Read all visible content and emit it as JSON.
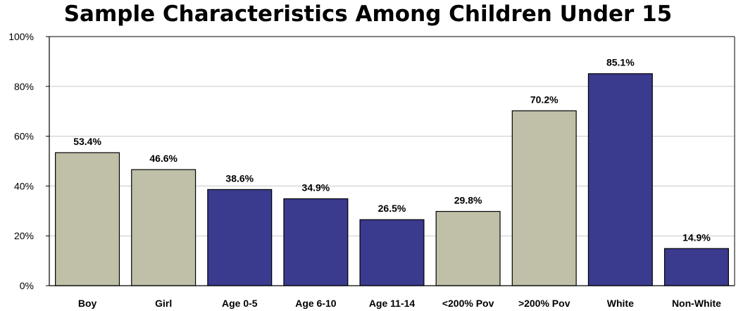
{
  "chart_data": {
    "type": "bar",
    "title": "Sample Characteristics Among Children Under 15",
    "xlabel": "",
    "ylabel": "",
    "ylim": [
      0,
      100
    ],
    "yticks": [
      "0%",
      "20%",
      "40%",
      "60%",
      "80%",
      "100%"
    ],
    "grid": true,
    "legend": "none",
    "categories": [
      "Boy",
      "Girl",
      "Age 0-5",
      "Age 6-10",
      "Age 11-14",
      "<200% Pov",
      ">200% Pov",
      "White",
      "Non-White"
    ],
    "values": [
      53.4,
      46.6,
      38.6,
      34.9,
      26.5,
      29.8,
      70.2,
      85.1,
      14.9
    ],
    "data_labels": [
      "53.4%",
      "46.6%",
      "38.6%",
      "34.9%",
      "26.5%",
      "29.8%",
      "70.2%",
      "85.1%",
      "14.9%"
    ],
    "bar_colors": [
      "#c0c0a8",
      "#c0c0a8",
      "#3a3a8e",
      "#3a3a8e",
      "#3a3a8e",
      "#c0c0a8",
      "#c0c0a8",
      "#3a3a8e",
      "#3a3a8e"
    ],
    "colors": {
      "grid": "#c8c8c8",
      "axis": "#000000",
      "bar_outline": "#000000"
    }
  }
}
